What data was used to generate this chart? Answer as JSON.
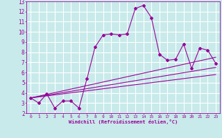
{
  "xlabel": "Windchill (Refroidissement éolien,°C)",
  "bg_color": "#c8eaea",
  "grid_color": "#ffffff",
  "line_color": "#990099",
  "xlim": [
    -0.5,
    23.5
  ],
  "ylim": [
    2,
    13
  ],
  "xticks": [
    0,
    1,
    2,
    3,
    4,
    5,
    6,
    7,
    8,
    9,
    10,
    11,
    12,
    13,
    14,
    15,
    16,
    17,
    18,
    19,
    20,
    21,
    22,
    23
  ],
  "yticks": [
    2,
    3,
    4,
    5,
    6,
    7,
    8,
    9,
    10,
    11,
    12,
    13
  ],
  "series1_x": [
    0,
    1,
    2,
    3,
    4,
    5,
    6,
    7,
    8,
    9,
    10,
    11,
    12,
    13,
    14,
    15,
    16,
    17,
    18,
    19,
    20,
    21,
    22,
    23
  ],
  "series1_y": [
    3.5,
    3.0,
    3.9,
    2.5,
    3.2,
    3.2,
    2.5,
    5.4,
    8.5,
    9.7,
    9.8,
    9.7,
    9.8,
    12.3,
    12.6,
    11.4,
    7.8,
    7.2,
    7.3,
    8.8,
    6.4,
    8.4,
    8.2,
    6.9
  ],
  "series2_x": [
    0,
    23
  ],
  "series2_y": [
    3.5,
    7.5
  ],
  "series3_x": [
    0,
    23
  ],
  "series3_y": [
    3.5,
    6.5
  ],
  "series4_x": [
    0,
    23
  ],
  "series4_y": [
    3.5,
    5.8
  ]
}
